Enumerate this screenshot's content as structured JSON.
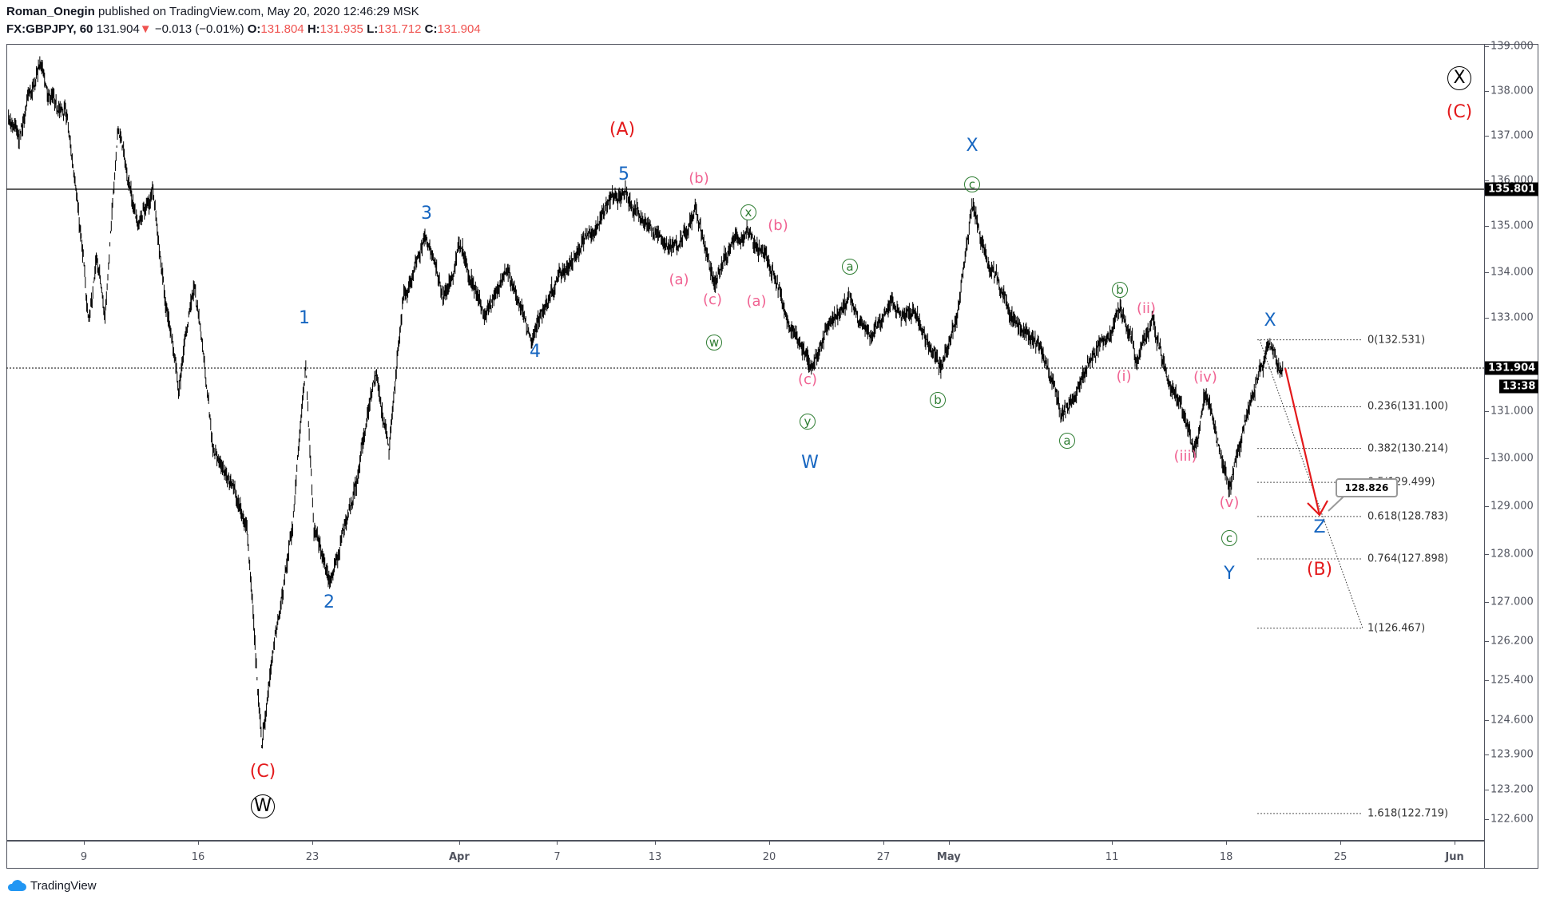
{
  "header": {
    "author": "Roman_Onegin",
    "published": "published on TradingView.com, May 20, 2020 12:46:29 MSK",
    "symbol": "FX:GBPJPY, 60",
    "last": "131.904",
    "change": "−0.013 (−0.01%)",
    "o_label": "O:",
    "o": "131.804",
    "h_label": "H:",
    "h": "131.935",
    "l_label": "L:",
    "l": "131.712",
    "c_label": "C:",
    "c": "131.904"
  },
  "price_axis": {
    "ticks": [
      "139.000",
      "138.000",
      "137.000",
      "136.000",
      "135.000",
      "134.000",
      "133.000",
      "131.000",
      "130.000",
      "129.000",
      "128.000",
      "127.000",
      "126.200",
      "125.400",
      "124.600",
      "123.900",
      "123.200",
      "122.600"
    ],
    "hline_price": "135.801",
    "last_price": "131.904",
    "countdown": "13:38"
  },
  "time_axis": {
    "labels": [
      {
        "t": "9",
        "d": 0
      },
      {
        "t": "16",
        "d": 7
      },
      {
        "t": "23",
        "d": 14
      },
      {
        "t": "Apr",
        "d": 23,
        "bold": true
      },
      {
        "t": "7",
        "d": 29
      },
      {
        "t": "13",
        "d": 35
      },
      {
        "t": "20",
        "d": 42
      },
      {
        "t": "27",
        "d": 49
      },
      {
        "t": "May",
        "d": 53,
        "bold": true
      },
      {
        "t": "11",
        "d": 63
      },
      {
        "t": "18",
        "d": 70
      },
      {
        "t": "25",
        "d": 77
      },
      {
        "t": "Jun",
        "d": 84,
        "bold": true
      }
    ]
  },
  "waves": [
    "(A)",
    "5",
    "(b)",
    "x",
    "(b)",
    "3",
    "1",
    "4",
    "2",
    "(C)",
    "W",
    "(a)",
    "(c)",
    "(a)",
    "w",
    "a",
    "(c)",
    "y",
    "W",
    "X",
    "c",
    "b",
    "b",
    "(ii)",
    "a",
    "(i)",
    "(iv)",
    "(iii)",
    "(v)",
    "c",
    "Y",
    "X",
    "Z",
    "(B)",
    "X",
    "(C)"
  ],
  "fib": [
    "0(132.531)",
    "0.236(131.100)",
    "0.382(130.214)",
    "0.5(129.499)",
    "0.618(128.783)",
    "0.764(127.898)",
    "1(126.467)",
    "1.618(122.719)"
  ],
  "fib_prices": [
    132.531,
    131.1,
    130.214,
    129.499,
    128.783,
    127.898,
    126.467,
    122.719
  ],
  "callout": "128.826",
  "footer": {
    "brand": "TradingView"
  },
  "colors": {
    "blue": "#1565c0",
    "red": "#e3191b",
    "pink": "#f06292",
    "green": "#2e7d32"
  },
  "chart_data": {
    "type": "candlestick",
    "symbol": "GBPJPY",
    "interval": "60",
    "x_unit": "days since Mar 9 2020",
    "pivots": [
      [
        -4.7,
        137.5
      ],
      [
        -4.0,
        137.0
      ],
      [
        -2.7,
        138.6
      ],
      [
        -1,
        137.4
      ],
      [
        0.3,
        133.0
      ],
      [
        0.8,
        134.3
      ],
      [
        1.3,
        133.0
      ],
      [
        2.1,
        137.2
      ],
      [
        3.3,
        135.0
      ],
      [
        4.2,
        135.8
      ],
      [
        5.8,
        131.4
      ],
      [
        6.8,
        133.7
      ],
      [
        7.9,
        130.3
      ],
      [
        9.0,
        129.5
      ],
      [
        10.0,
        128.5
      ],
      [
        10.9,
        124.1
      ],
      [
        11.8,
        126.5
      ],
      [
        12.8,
        128.5
      ],
      [
        13.6,
        132.0
      ],
      [
        14.1,
        128.5
      ],
      [
        15.1,
        127.4
      ],
      [
        16.5,
        129.2
      ],
      [
        17.9,
        131.8
      ],
      [
        18.7,
        130.2
      ],
      [
        19.6,
        133.5
      ],
      [
        20.9,
        134.8
      ],
      [
        22,
        133.5
      ],
      [
        23,
        134.6
      ],
      [
        24.5,
        133.0
      ],
      [
        26,
        134.0
      ],
      [
        27.5,
        132.5
      ],
      [
        29,
        133.8
      ],
      [
        30.5,
        134.6
      ],
      [
        31.5,
        135.0
      ],
      [
        33.1,
        135.75
      ],
      [
        34.5,
        135.1
      ],
      [
        35.5,
        134.6
      ],
      [
        36.6,
        134.7
      ],
      [
        37.5,
        135.4
      ],
      [
        38.7,
        133.7
      ],
      [
        40,
        134.8
      ],
      [
        40.8,
        134.9
      ],
      [
        42,
        134.2
      ],
      [
        43,
        133.1
      ],
      [
        44.5,
        131.9
      ],
      [
        45.5,
        132.8
      ],
      [
        46.9,
        133.5
      ],
      [
        48,
        132.8
      ],
      [
        49.5,
        133.4
      ],
      [
        51,
        133.0
      ],
      [
        52.6,
        131.9
      ],
      [
        53.5,
        133.0
      ],
      [
        54.5,
        135.5
      ],
      [
        55.5,
        134.0
      ],
      [
        57,
        133.0
      ],
      [
        58.5,
        132.5
      ],
      [
        59.9,
        130.8
      ],
      [
        61.5,
        132.0
      ],
      [
        63.5,
        133.2
      ],
      [
        64.5,
        132.0
      ],
      [
        65.5,
        133.0
      ],
      [
        66.5,
        131.6
      ],
      [
        68.1,
        130.2
      ],
      [
        68.7,
        131.35
      ],
      [
        70.2,
        129.4
      ],
      [
        71.3,
        131.0
      ],
      [
        72.6,
        132.5
      ],
      [
        73.5,
        131.9
      ]
    ],
    "ylim": [
      122.3,
      139.2
    ],
    "scale": "log"
  }
}
